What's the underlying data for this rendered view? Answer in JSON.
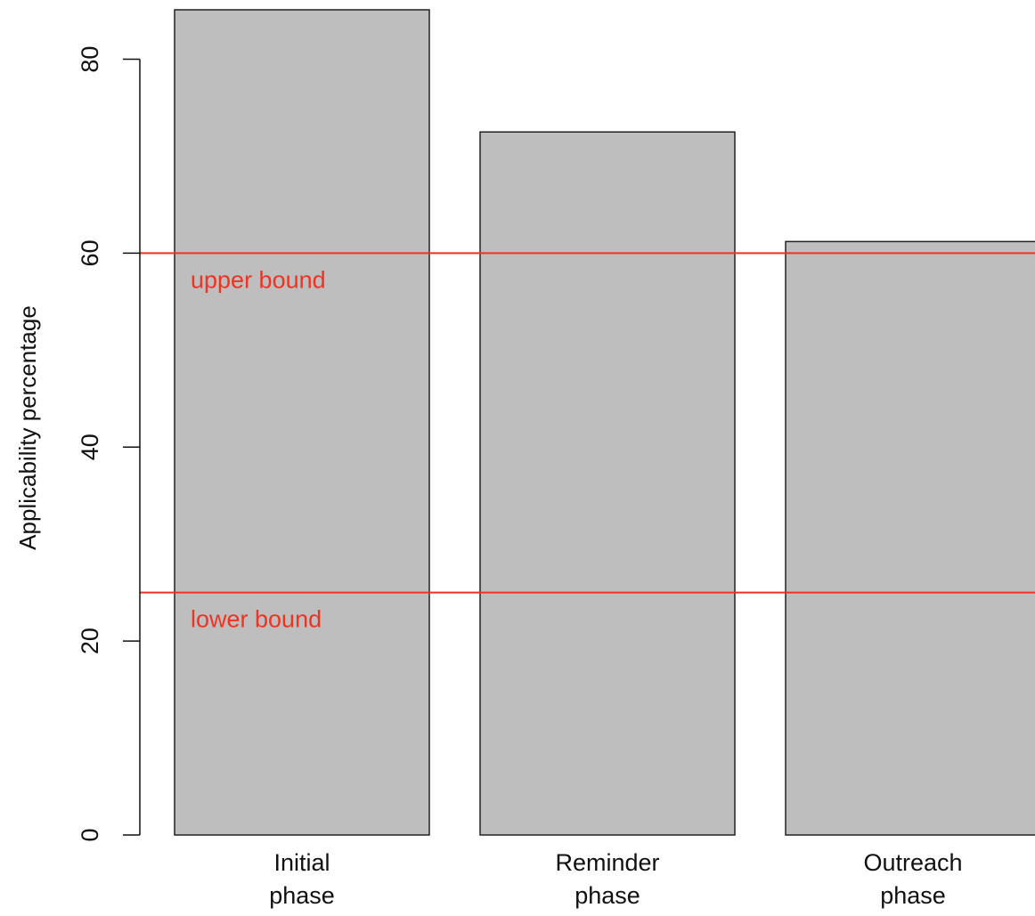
{
  "chart_data": {
    "type": "bar",
    "categories": [
      [
        "Initial",
        "phase"
      ],
      [
        "Reminder",
        "phase"
      ],
      [
        "Outreach",
        "phase"
      ]
    ],
    "values": [
      85.1,
      72.5,
      61.2
    ],
    "ylabel": "Applicability percentage",
    "ylim": [
      0,
      85.1
    ],
    "yticks": [
      0,
      20,
      40,
      60,
      80
    ],
    "bar_fill": "#bebebe",
    "bar_stroke": "#222222",
    "reference_lines": [
      {
        "value": 60,
        "label": "upper bound",
        "color": "#ee3322"
      },
      {
        "value": 25,
        "label": "lower bound",
        "color": "#ee3322"
      }
    ],
    "grid": false,
    "legend": "none"
  }
}
